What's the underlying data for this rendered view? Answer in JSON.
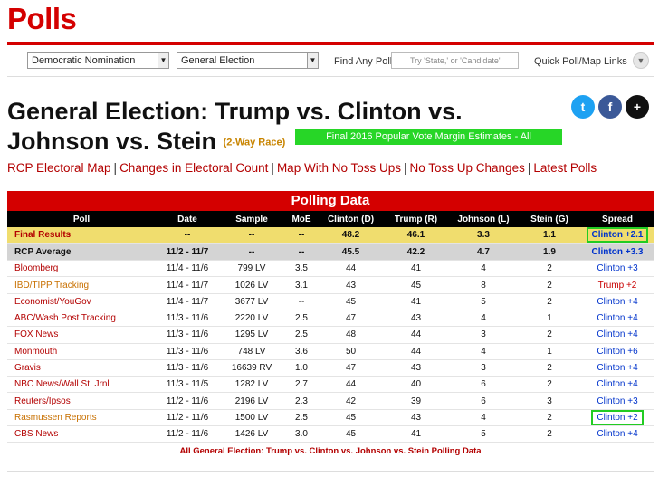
{
  "brand": "Polls",
  "toolbar": {
    "nomination_select": "Democratic Nomination",
    "election_select": "General Election",
    "find_label": "Find Any Poll",
    "find_placeholder": "Try 'State,' or 'Candidate'",
    "quick_label": "Quick Poll/Map Links",
    "quick_icon": "chevron-down-icon"
  },
  "page": {
    "title": "General Election: Trump vs. Clinton vs. Johnson vs. Stein",
    "race_tag": "(2-Way Race)",
    "estimates_label": "Final 2016 Popular Vote Margin Estimates - All"
  },
  "social": {
    "twitter": "t",
    "facebook": "f",
    "plus": "+"
  },
  "links": [
    "RCP Electoral Map",
    "Changes in Electoral Count",
    "Map With No Toss Ups",
    "No Toss Up Changes",
    "Latest Polls"
  ],
  "table": {
    "heading": "Polling Data",
    "columns": [
      "Poll",
      "Date",
      "Sample",
      "MoE",
      "Clinton (D)",
      "Trump (R)",
      "Johnson (L)",
      "Stein (G)",
      "Spread"
    ],
    "rows": [
      {
        "poll": "Final Results",
        "date": "--",
        "sample": "--",
        "moe": "--",
        "clinton": "48.2",
        "trump": "46.1",
        "johnson": "3.3",
        "stein": "1.1",
        "spread": "Clinton +2.1"
      },
      {
        "poll": "RCP Average",
        "date": "11/2 - 11/7",
        "sample": "--",
        "moe": "--",
        "clinton": "45.5",
        "trump": "42.2",
        "johnson": "4.7",
        "stein": "1.9",
        "spread": "Clinton +3.3"
      },
      {
        "poll": "Bloomberg",
        "date": "11/4 - 11/6",
        "sample": "799 LV",
        "moe": "3.5",
        "clinton": "44",
        "trump": "41",
        "johnson": "4",
        "stein": "2",
        "spread": "Clinton +3"
      },
      {
        "poll": "IBD/TIPP Tracking",
        "date": "11/4 - 11/7",
        "sample": "1026 LV",
        "moe": "3.1",
        "clinton": "43",
        "trump": "45",
        "johnson": "8",
        "stein": "2",
        "spread": "Trump +2"
      },
      {
        "poll": "Economist/YouGov",
        "date": "11/4 - 11/7",
        "sample": "3677 LV",
        "moe": "--",
        "clinton": "45",
        "trump": "41",
        "johnson": "5",
        "stein": "2",
        "spread": "Clinton +4"
      },
      {
        "poll": "ABC/Wash Post Tracking",
        "date": "11/3 - 11/6",
        "sample": "2220 LV",
        "moe": "2.5",
        "clinton": "47",
        "trump": "43",
        "johnson": "4",
        "stein": "1",
        "spread": "Clinton +4"
      },
      {
        "poll": "FOX News",
        "date": "11/3 - 11/6",
        "sample": "1295 LV",
        "moe": "2.5",
        "clinton": "48",
        "trump": "44",
        "johnson": "3",
        "stein": "2",
        "spread": "Clinton +4"
      },
      {
        "poll": "Monmouth",
        "date": "11/3 - 11/6",
        "sample": "748 LV",
        "moe": "3.6",
        "clinton": "50",
        "trump": "44",
        "johnson": "4",
        "stein": "1",
        "spread": "Clinton +6"
      },
      {
        "poll": "Gravis",
        "date": "11/3 - 11/6",
        "sample": "16639 RV",
        "moe": "1.0",
        "clinton": "47",
        "trump": "43",
        "johnson": "3",
        "stein": "2",
        "spread": "Clinton +4"
      },
      {
        "poll": "NBC News/Wall St. Jrnl",
        "date": "11/3 - 11/5",
        "sample": "1282 LV",
        "moe": "2.7",
        "clinton": "44",
        "trump": "40",
        "johnson": "6",
        "stein": "2",
        "spread": "Clinton +4"
      },
      {
        "poll": "Reuters/Ipsos",
        "date": "11/2 - 11/6",
        "sample": "2196 LV",
        "moe": "2.3",
        "clinton": "42",
        "trump": "39",
        "johnson": "6",
        "stein": "3",
        "spread": "Clinton +3"
      },
      {
        "poll": "Rasmussen Reports",
        "date": "11/2 - 11/6",
        "sample": "1500 LV",
        "moe": "2.5",
        "clinton": "45",
        "trump": "43",
        "johnson": "4",
        "stein": "2",
        "spread": "Clinton +2"
      },
      {
        "poll": "CBS News",
        "date": "11/2 - 11/6",
        "sample": "1426 LV",
        "moe": "3.0",
        "clinton": "45",
        "trump": "41",
        "johnson": "5",
        "stein": "2",
        "spread": "Clinton +4"
      }
    ],
    "footer_link": "All General Election: Trump vs. Clinton vs. Johnson vs. Stein Polling Data"
  }
}
